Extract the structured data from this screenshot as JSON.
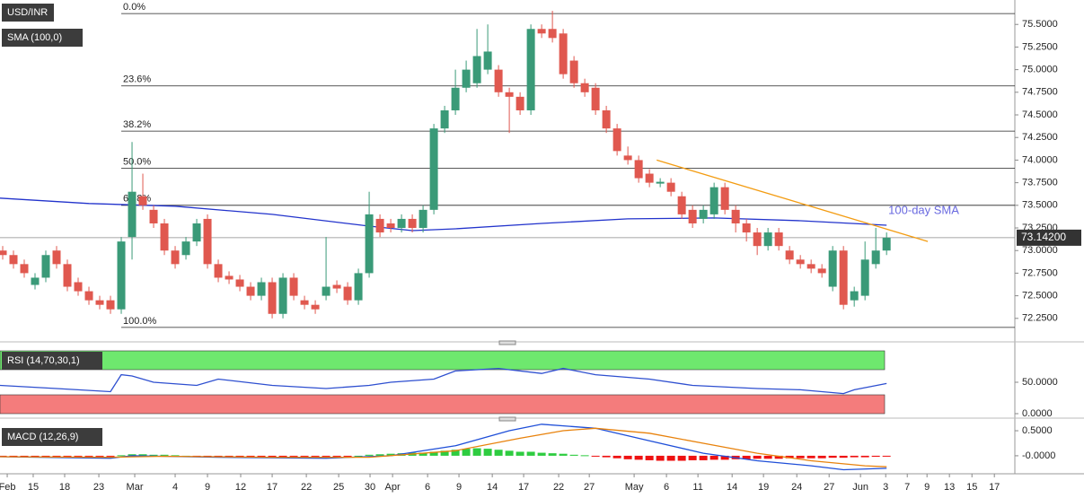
{
  "chart_data": [
    {
      "type": "candlestick",
      "title": "USD/INR",
      "indicator": "SMA (100,0)",
      "xlim": [
        -0.25,
        93.9
      ],
      "ylim": [
        72.02,
        75.77
      ],
      "xticks": [
        {
          "value": 0.42,
          "label": "Feb"
        },
        {
          "value": 2.83,
          "label": "15"
        },
        {
          "value": 5.75,
          "label": "18"
        },
        {
          "value": 8.92,
          "label": "23"
        },
        {
          "value": 12.25,
          "label": "Mar"
        },
        {
          "value": 16,
          "label": "4"
        },
        {
          "value": 19,
          "label": "9"
        },
        {
          "value": 22.08,
          "label": "12"
        },
        {
          "value": 25,
          "label": "17"
        },
        {
          "value": 28.17,
          "label": "22"
        },
        {
          "value": 31.17,
          "label": "25"
        },
        {
          "value": 34.08,
          "label": "30"
        },
        {
          "value": 36.17,
          "label": "Apr"
        },
        {
          "value": 39.42,
          "label": "6"
        },
        {
          "value": 42.33,
          "label": "9"
        },
        {
          "value": 45.42,
          "label": "14"
        },
        {
          "value": 48.33,
          "label": "17"
        },
        {
          "value": 51.58,
          "label": "22"
        },
        {
          "value": 54.42,
          "label": "27"
        },
        {
          "value": 58.58,
          "label": "May"
        },
        {
          "value": 61.58,
          "label": "6"
        },
        {
          "value": 64.5,
          "label": "11"
        },
        {
          "value": 67.67,
          "label": "14"
        },
        {
          "value": 70.58,
          "label": "19"
        },
        {
          "value": 73.67,
          "label": "24"
        },
        {
          "value": 76.67,
          "label": "27"
        },
        {
          "value": 79.58,
          "label": "Jun"
        },
        {
          "value": 81.92,
          "label": "3"
        },
        {
          "value": 83.92,
          "label": "7"
        },
        {
          "value": 85.75,
          "label": "9"
        },
        {
          "value": 87.83,
          "label": "13"
        },
        {
          "value": 89.92,
          "label": "15"
        },
        {
          "value": 92,
          "label": "17"
        }
      ],
      "yticks": [
        {
          "value": 72.25,
          "label": "72.2500"
        },
        {
          "value": 72.5,
          "label": "72.5000"
        },
        {
          "value": 72.75,
          "label": "72.7500"
        },
        {
          "value": 73,
          "label": "73.0000"
        },
        {
          "value": 73.25,
          "label": "73.2500"
        },
        {
          "value": 73.5,
          "label": "73.5000"
        },
        {
          "value": 73.75,
          "label": "73.7500"
        },
        {
          "value": 74,
          "label": "74.0000"
        },
        {
          "value": 74.25,
          "label": "74.2500"
        },
        {
          "value": 74.5,
          "label": "74.5000"
        },
        {
          "value": 74.75,
          "label": "74.7500"
        },
        {
          "value": 75,
          "label": "75.0000"
        },
        {
          "value": 75.25,
          "label": "75.2500"
        },
        {
          "value": 75.5,
          "label": "75.5000"
        }
      ],
      "up_color": "#3a9a78",
      "down_color": "#e0584f",
      "open": [
        73.0,
        72.95,
        72.85,
        72.62,
        72.7,
        73.0,
        72.85,
        72.65,
        72.55,
        72.45,
        72.45,
        72.35,
        73.15,
        73.6,
        73.45,
        73.3,
        73.0,
        72.95,
        73.1,
        73.35,
        72.85,
        72.72,
        72.68,
        72.6,
        72.5,
        72.65,
        72.3,
        72.7,
        72.45,
        72.4,
        72.5,
        72.62,
        72.6,
        72.45,
        72.75,
        73.35,
        73.3,
        73.25,
        73.35,
        73.25,
        73.45,
        74.35,
        74.55,
        74.8,
        74.85,
        75.0,
        75.0,
        74.75,
        74.7,
        74.55,
        75.45,
        75.45,
        75.4,
        75.1,
        74.85,
        74.8,
        74.55,
        74.35,
        74.05,
        74.0,
        73.85,
        73.74,
        73.75,
        73.6,
        73.45,
        73.35,
        73.4,
        73.7,
        73.45,
        73.3,
        73.2,
        73.05,
        73.2,
        73.0,
        72.9,
        72.85,
        72.8,
        72.6,
        73.0,
        72.45,
        72.5,
        72.85,
        73.0
      ],
      "high": [
        73.05,
        73.0,
        72.9,
        72.75,
        73.0,
        73.05,
        72.9,
        72.7,
        72.6,
        72.5,
        72.5,
        73.15,
        74.2,
        73.85,
        73.5,
        73.35,
        73.05,
        73.15,
        73.35,
        73.4,
        72.9,
        72.77,
        72.73,
        72.65,
        72.7,
        72.7,
        72.75,
        72.75,
        72.5,
        72.45,
        73.15,
        72.67,
        72.65,
        72.8,
        73.65,
        73.4,
        73.35,
        73.4,
        73.4,
        73.5,
        74.4,
        74.6,
        75.0,
        75.1,
        75.45,
        75.5,
        75.05,
        74.8,
        74.75,
        75.5,
        75.5,
        75.65,
        75.45,
        75.15,
        74.9,
        74.85,
        74.6,
        74.4,
        74.15,
        74.05,
        73.9,
        73.8,
        73.8,
        73.65,
        73.5,
        73.5,
        73.75,
        73.75,
        73.5,
        73.35,
        73.25,
        73.25,
        73.25,
        73.05,
        72.95,
        72.9,
        72.85,
        73.05,
        73.05,
        72.6,
        73.1,
        73.25,
        73.2
      ],
      "low": [
        72.9,
        72.8,
        72.7,
        72.57,
        72.65,
        72.8,
        72.55,
        72.5,
        72.4,
        72.35,
        72.3,
        72.3,
        72.9,
        73.45,
        73.25,
        72.95,
        72.8,
        72.9,
        73.05,
        72.8,
        72.65,
        72.63,
        72.55,
        72.45,
        72.45,
        72.25,
        72.25,
        72.45,
        72.35,
        72.3,
        72.45,
        72.53,
        72.4,
        72.4,
        72.7,
        73.15,
        73.2,
        73.2,
        73.2,
        73.2,
        73.4,
        74.3,
        74.5,
        74.75,
        74.8,
        74.95,
        74.7,
        74.3,
        74.5,
        74.5,
        75.35,
        75.3,
        74.9,
        74.8,
        74.7,
        74.5,
        74.3,
        74.05,
        73.95,
        73.75,
        73.7,
        73.7,
        73.6,
        73.35,
        73.25,
        73.3,
        73.35,
        73.4,
        73.2,
        73.1,
        72.95,
        73.0,
        73.0,
        72.85,
        72.8,
        72.75,
        72.7,
        72.55,
        72.35,
        72.38,
        72.45,
        72.8,
        72.95
      ],
      "close": [
        72.95,
        72.85,
        72.75,
        72.7,
        72.95,
        72.85,
        72.6,
        72.55,
        72.45,
        72.4,
        72.35,
        73.1,
        73.65,
        73.5,
        73.3,
        73.0,
        72.85,
        73.1,
        73.3,
        72.85,
        72.7,
        72.68,
        72.6,
        72.5,
        72.65,
        72.3,
        72.7,
        72.5,
        72.4,
        72.35,
        72.6,
        72.58,
        72.45,
        72.75,
        73.4,
        73.2,
        73.25,
        73.35,
        73.25,
        73.45,
        74.35,
        74.55,
        74.8,
        75.0,
        75.15,
        75.2,
        74.75,
        74.7,
        74.55,
        75.45,
        75.4,
        75.35,
        74.95,
        74.85,
        74.75,
        74.55,
        74.35,
        74.1,
        74.0,
        73.8,
        73.75,
        73.76,
        73.65,
        73.4,
        73.3,
        73.45,
        73.7,
        73.45,
        73.3,
        73.2,
        73.05,
        73.2,
        73.05,
        72.9,
        72.85,
        72.8,
        72.75,
        73.0,
        72.4,
        72.55,
        72.9,
        73.0,
        73.142
      ],
      "sma": {
        "name": "100-day SMA",
        "color": "#2233cc",
        "x": [
          -0.25,
          8,
          16,
          25,
          34,
          38,
          42,
          50,
          58,
          66,
          74,
          82
        ],
        "values": [
          73.58,
          73.52,
          73.49,
          73.4,
          73.27,
          73.22,
          73.24,
          73.3,
          73.35,
          73.36,
          73.33,
          73.28
        ]
      },
      "trendline": {
        "color": "#f39c12",
        "x": [
          60.67,
          85.83
        ],
        "values": [
          74.0,
          73.1
        ]
      },
      "fibonacci": [
        {
          "label": "0.0%",
          "value": 75.62
        },
        {
          "label": "23.6%",
          "value": 74.82
        },
        {
          "label": "38.2%",
          "value": 74.32
        },
        {
          "label": "50.0%",
          "value": 73.91
        },
        {
          "label": "61.8%",
          "value": 73.5
        },
        {
          "label": "100.0%",
          "value": 72.15
        }
      ],
      "last_price": {
        "value": 73.142,
        "label": "73.14200"
      }
    },
    {
      "type": "line",
      "title": "RSI (14,70,30,1)",
      "ylim": [
        0,
        104
      ],
      "yticks": [
        {
          "value": 50,
          "label": "50.0000"
        },
        {
          "value": 0,
          "label": "0.0000"
        }
      ],
      "bands": [
        {
          "range": [
            70,
            100
          ],
          "color": "#6ee86e"
        },
        {
          "range": [
            0,
            30
          ],
          "color": "#f47c7c"
        }
      ],
      "series": [
        {
          "color": "#2e4fd0",
          "x": [
            -0.25,
            5,
            10,
            11,
            12,
            14,
            18,
            20,
            25,
            30,
            34,
            36,
            40,
            42,
            46,
            50,
            52,
            55,
            60,
            64,
            70,
            74,
            78,
            79,
            82
          ],
          "values": [
            45,
            40,
            35,
            62,
            60,
            50,
            45,
            55,
            45,
            40,
            45,
            50,
            55,
            68,
            72,
            64,
            72,
            62,
            55,
            45,
            40,
            38,
            32,
            38,
            48
          ]
        }
      ]
    },
    {
      "type": "macd",
      "title": "MACD (12,26,9)",
      "ylim": [
        -0.36,
        0.68
      ],
      "yticks": [
        {
          "value": 0.5,
          "label": "0.5000"
        },
        {
          "value": 0,
          "label": "-0.0000"
        }
      ],
      "histogram": {
        "up_color": "#2ecc40",
        "down_color": "#ee1111",
        "values": [
          -0.01,
          -0.01,
          -0.01,
          -0.01,
          -0.01,
          -0.005,
          -0.01,
          -0.01,
          -0.01,
          -0.01,
          -0.01,
          0.01,
          0.03,
          0.03,
          0.02,
          0.02,
          0.01,
          0.0,
          -0.01,
          -0.01,
          -0.01,
          -0.02,
          -0.02,
          -0.02,
          -0.02,
          -0.02,
          -0.02,
          -0.01,
          -0.01,
          -0.01,
          -0.01,
          -0.005,
          -0.005,
          0.0,
          0.02,
          0.03,
          0.04,
          0.05,
          0.06,
          0.06,
          0.08,
          0.1,
          0.12,
          0.14,
          0.15,
          0.14,
          0.12,
          0.1,
          0.08,
          0.08,
          0.06,
          0.05,
          0.04,
          0.02,
          0.01,
          -0.01,
          -0.03,
          -0.05,
          -0.07,
          -0.08,
          -0.09,
          -0.1,
          -0.1,
          -0.1,
          -0.09,
          -0.09,
          -0.08,
          -0.08,
          -0.07,
          -0.07,
          -0.06,
          -0.06,
          -0.06,
          -0.05,
          -0.05,
          -0.05,
          -0.05,
          -0.04,
          -0.04,
          -0.03,
          -0.03,
          -0.02,
          -0.01
        ]
      },
      "series": [
        {
          "color": "#1f4fd8",
          "x": [
            -0.25,
            10,
            12,
            20,
            30,
            36,
            42,
            47,
            50,
            55,
            60,
            65,
            70,
            75,
            78,
            82
          ],
          "values": [
            -0.02,
            -0.05,
            0.0,
            -0.03,
            -0.05,
            0.0,
            0.2,
            0.5,
            0.63,
            0.55,
            0.3,
            0.05,
            -0.1,
            -0.2,
            -0.28,
            -0.25
          ]
        },
        {
          "color": "#e8820c",
          "x": [
            -0.25,
            10,
            15,
            25,
            34,
            42,
            48,
            52,
            55,
            60,
            65,
            70,
            75,
            80,
            82
          ],
          "values": [
            -0.02,
            -0.03,
            -0.01,
            -0.03,
            -0.03,
            0.1,
            0.35,
            0.5,
            0.55,
            0.45,
            0.25,
            0.05,
            -0.1,
            -0.2,
            -0.22
          ]
        }
      ]
    }
  ]
}
